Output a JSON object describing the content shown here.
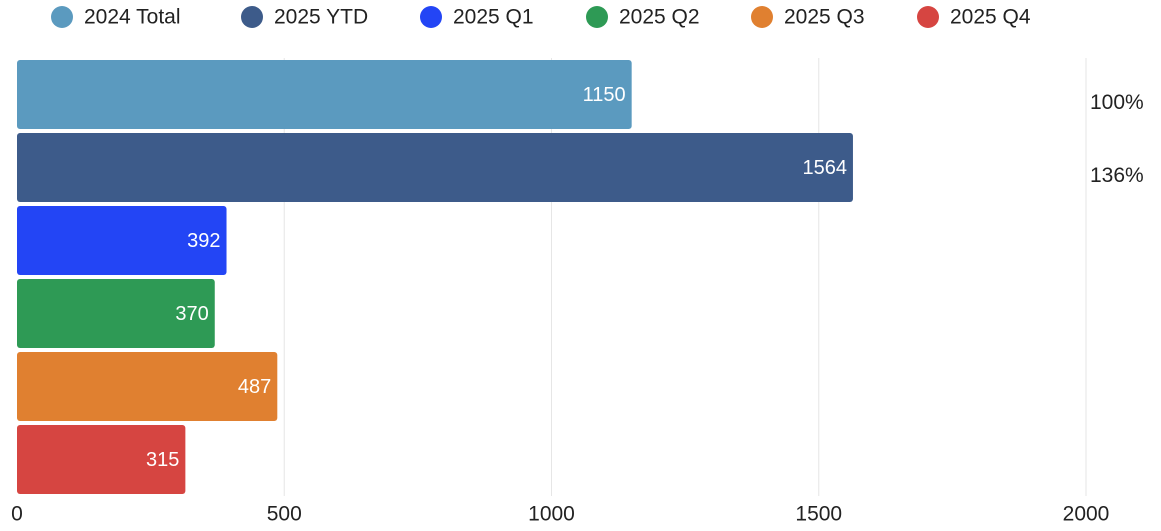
{
  "chart_data": {
    "type": "bar",
    "orientation": "horizontal",
    "series": [
      {
        "name": "2024 Total",
        "color": "#5b9abf",
        "values": [
          1150
        ]
      },
      {
        "name": "2025 YTD",
        "color": "#3d5b8a",
        "values": [
          1564
        ]
      },
      {
        "name": "2025 Q1",
        "color": "#2345f5",
        "values": [
          392
        ]
      },
      {
        "name": "2025 Q2",
        "color": "#2e9a55",
        "values": [
          370
        ]
      },
      {
        "name": "2025 Q3",
        "color": "#e08030",
        "values": [
          487
        ]
      },
      {
        "name": "2025 Q4",
        "color": "#d64541",
        "values": [
          315
        ]
      }
    ],
    "xlim": [
      0,
      2000
    ],
    "xticks": [
      0,
      500,
      1000,
      1500,
      2000
    ],
    "grid": true,
    "legend": "top",
    "annotations": [
      "100%",
      "136%"
    ]
  }
}
